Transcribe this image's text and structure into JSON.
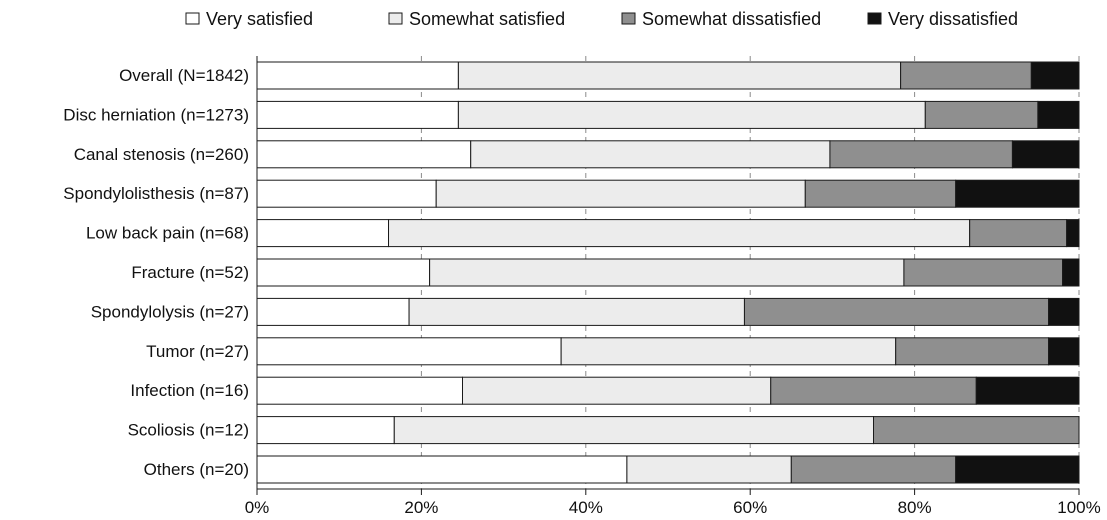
{
  "chart_data": {
    "type": "bar",
    "orientation": "horizontal",
    "stacked": true,
    "categories": [
      "Overall (N=1842)",
      "Disc herniation (n=1273)",
      "Canal stenosis (n=260)",
      "Spondylolisthesis (n=87)",
      "Low back pain (n=68)",
      "Fracture (n=52)",
      "Spondylolysis (n=27)",
      "Tumor (n=27)",
      "Infection (n=16)",
      "Scoliosis (n=12)",
      "Others (n=20)"
    ],
    "series": [
      {
        "name": "Very satisfied",
        "color": "#ffffff",
        "values": [
          24.5,
          24.5,
          26,
          21.8,
          16,
          21,
          18.5,
          37,
          25,
          16.7,
          45
        ]
      },
      {
        "name": "Somewhat satisfied",
        "color": "#ececec",
        "values": [
          53.8,
          56.8,
          43.7,
          44.9,
          70.7,
          57.7,
          40.8,
          40.7,
          37.5,
          58.3,
          20
        ]
      },
      {
        "name": "Somewhat dissatisfied",
        "color": "#8f8f8f",
        "values": [
          15.9,
          13.7,
          22.2,
          18.3,
          11.8,
          19.3,
          37.0,
          18.6,
          25,
          25,
          20
        ]
      },
      {
        "name": "Very dissatisfied",
        "color": "#111111",
        "values": [
          5.8,
          5.0,
          8.1,
          15.0,
          1.5,
          2.0,
          3.7,
          3.7,
          12.5,
          0,
          15
        ]
      }
    ],
    "xlim": [
      0,
      100
    ],
    "xticks": [
      "0%",
      "20%",
      "40%",
      "60%",
      "80%",
      "100%"
    ],
    "xtick_values": [
      0,
      20,
      40,
      60,
      80,
      100
    ],
    "grid": "vertical dashed",
    "legend_position": "top"
  }
}
